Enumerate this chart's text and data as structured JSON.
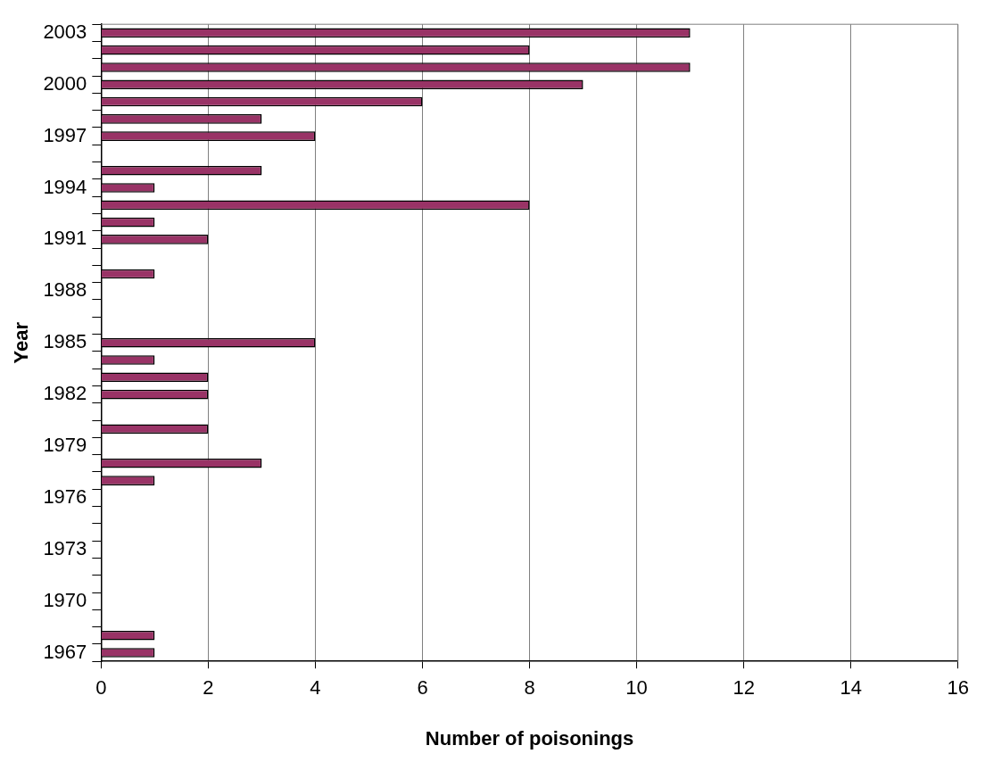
{
  "chart_data": {
    "type": "bar",
    "orientation": "horizontal",
    "xlabel": "Number of poisonings",
    "ylabel": "Year",
    "categories": [
      "2003",
      null,
      null,
      "2000",
      null,
      null,
      "1997",
      null,
      null,
      "1994",
      null,
      null,
      "1991",
      null,
      null,
      "1988",
      null,
      null,
      "1985",
      null,
      null,
      "1982",
      null,
      null,
      "1979",
      null,
      null,
      "1976",
      null,
      null,
      "1973",
      null,
      null,
      "1970",
      null,
      null,
      "1967"
    ],
    "values": [
      11,
      8,
      11,
      9,
      6,
      3,
      4,
      0,
      3,
      1,
      8,
      1,
      2,
      0,
      1,
      0,
      0,
      0,
      4,
      1,
      2,
      2,
      0,
      2,
      0,
      3,
      1,
      0,
      0,
      0,
      0,
      0,
      0,
      0,
      0,
      1,
      1
    ],
    "color": "#993366",
    "xlim": [
      0,
      16
    ],
    "xticks": [
      0,
      2,
      4,
      6,
      8,
      10,
      12,
      14,
      16
    ],
    "grid": "x"
  }
}
